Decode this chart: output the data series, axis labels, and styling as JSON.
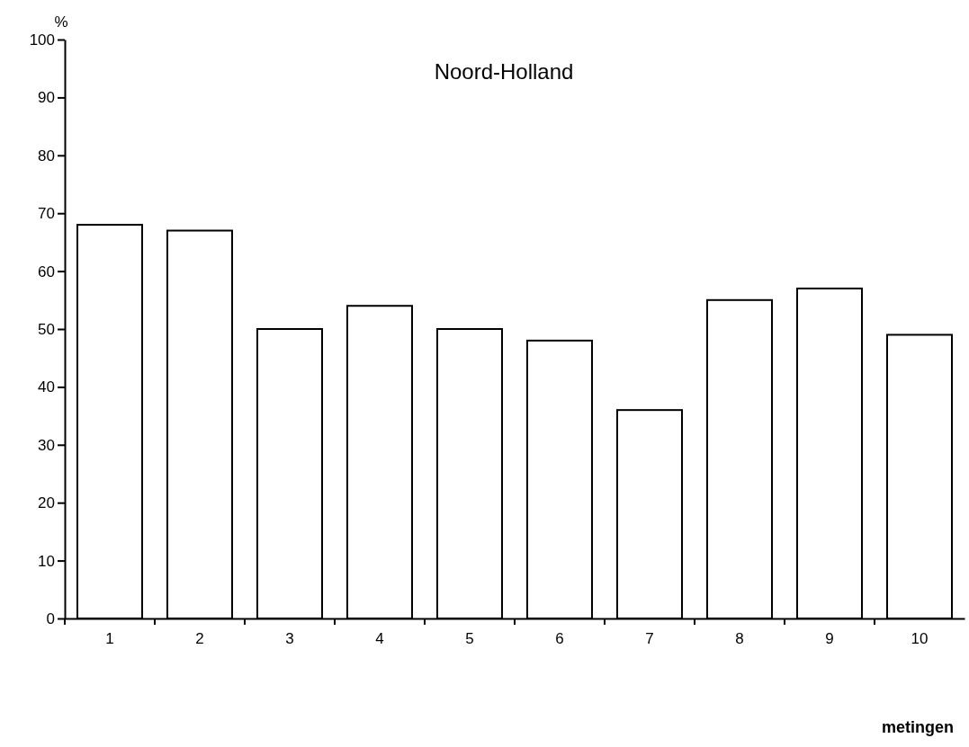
{
  "chart_data": {
    "type": "bar",
    "title": "Noord-Holland",
    "xlabel": "metingen",
    "ylabel": "%",
    "categories": [
      "1",
      "2",
      "3",
      "4",
      "5",
      "6",
      "7",
      "8",
      "9",
      "10"
    ],
    "values": [
      68,
      67,
      50,
      54,
      50,
      48,
      36,
      55,
      57,
      49
    ],
    "color": "#ffffff",
    "ylim": [
      0,
      100
    ],
    "yticks": [
      0,
      10,
      20,
      30,
      40,
      50,
      60,
      70,
      80,
      90,
      100
    ],
    "grid": false
  }
}
